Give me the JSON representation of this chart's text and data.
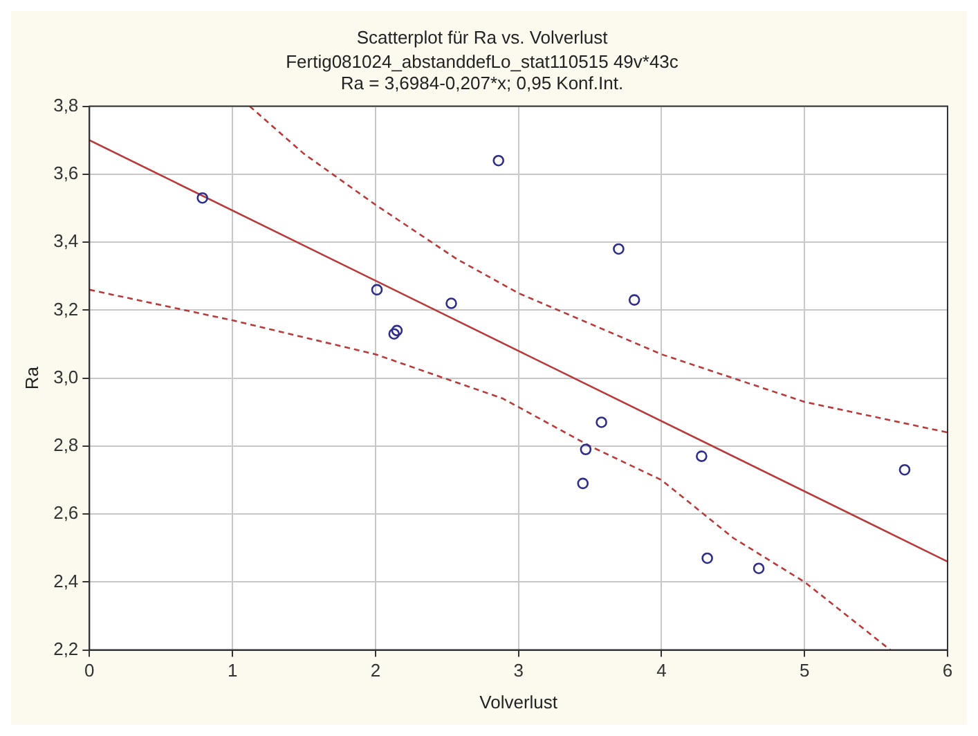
{
  "chart_data": {
    "type": "scatter",
    "title": "Scatterplot für Ra vs. Volverlust",
    "subtitle": "Fertig081024_abstanddefLo_stat110515 49v*43c",
    "annotations": [
      "Ra = 3,6984-0,207*x; 0,95 Konf.Int."
    ],
    "xlabel": "Volverlust",
    "ylabel": "Ra",
    "xlim": [
      0,
      6
    ],
    "xticks": [
      0,
      1,
      2,
      3,
      4,
      5,
      6
    ],
    "ylim": [
      2.2,
      3.8
    ],
    "yticks": [
      {
        "value": 2.2,
        "label": "2,2"
      },
      {
        "value": 2.4,
        "label": "2,4"
      },
      {
        "value": 2.6,
        "label": "2,6"
      },
      {
        "value": 2.8,
        "label": "2,8"
      },
      {
        "value": 3.0,
        "label": "3,0"
      },
      {
        "value": 3.2,
        "label": "3,2"
      },
      {
        "value": 3.4,
        "label": "3,4"
      },
      {
        "value": 3.6,
        "label": "3,6"
      },
      {
        "value": 3.8,
        "label": "3,8"
      }
    ],
    "grid": true,
    "legend": false,
    "series": [
      {
        "type": "scatter",
        "color": "#2e2e8a",
        "marker": "circle",
        "x": [
          0.79,
          2.01,
          2.13,
          2.15,
          2.53,
          2.86,
          3.7,
          3.81,
          3.58,
          3.47,
          3.45,
          4.28,
          5.7,
          4.32,
          4.68
        ],
        "values": [
          3.53,
          3.26,
          3.13,
          3.14,
          3.22,
          3.64,
          3.38,
          3.23,
          2.87,
          2.79,
          2.69,
          2.77,
          2.73,
          2.47,
          2.44
        ]
      },
      {
        "type": "line",
        "color": "#b83a3a",
        "marker": "none",
        "line_style": "solid",
        "x": [
          0,
          6
        ],
        "values": [
          3.7,
          2.46
        ]
      },
      {
        "type": "line",
        "color": "#b83a3a",
        "marker": "none",
        "line_style": "dashed",
        "x": [
          1.12,
          1.5,
          2,
          2.57,
          3,
          4,
          5,
          6
        ],
        "values": [
          3.8,
          3.66,
          3.51,
          3.35,
          3.25,
          3.07,
          2.93,
          2.84
        ]
      },
      {
        "type": "line",
        "color": "#b83a3a",
        "marker": "none",
        "line_style": "dashed",
        "x": [
          0,
          1,
          2,
          2.89,
          3.5,
          4,
          4.5,
          5,
          5.6
        ],
        "values": [
          3.26,
          3.17,
          3.07,
          2.94,
          2.8,
          2.7,
          2.53,
          2.4,
          2.2
        ]
      }
    ]
  }
}
